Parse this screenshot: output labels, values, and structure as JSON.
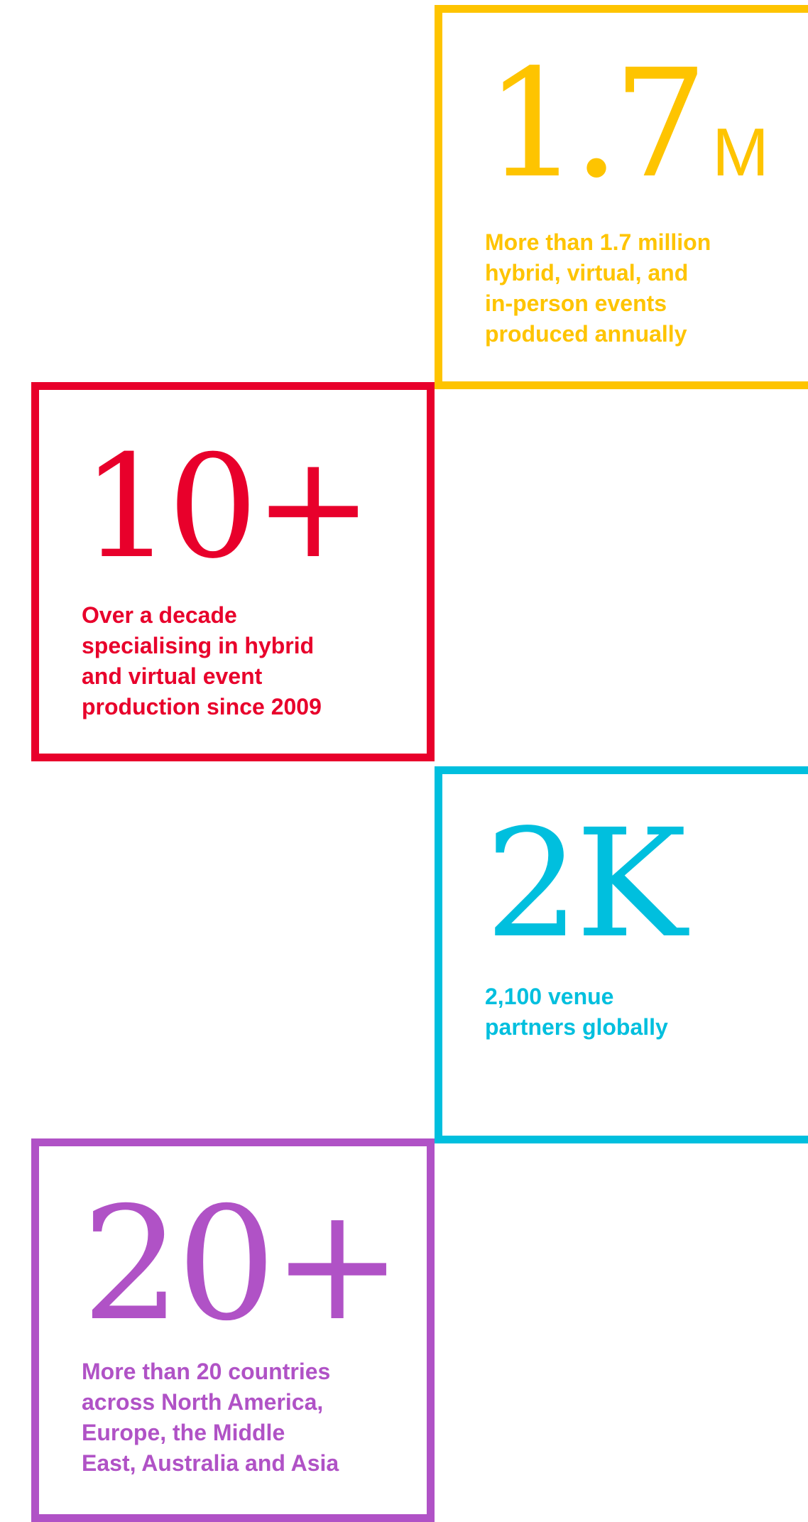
{
  "colors": {
    "yellow": "#fec400",
    "red": "#e8002b",
    "cyan": "#00bfde",
    "purple": "#b052c6",
    "background": "#ffffff"
  },
  "stats": [
    {
      "number": "1.7",
      "unit": "M",
      "description": "More than 1.7 million\nhybrid, virtual, and\nin-person events\nproduced annually"
    },
    {
      "number": "10+",
      "unit": "",
      "description": "Over a decade\nspecialising in hybrid\nand virtual event\nproduction since 2009"
    },
    {
      "number": "2K",
      "unit": "",
      "description": "2,100 venue\npartners globally"
    },
    {
      "number": "20+",
      "unit": "",
      "description": "More than 20 countries\nacross North America,\nEurope, the Middle\nEast, Australia and Asia"
    }
  ]
}
